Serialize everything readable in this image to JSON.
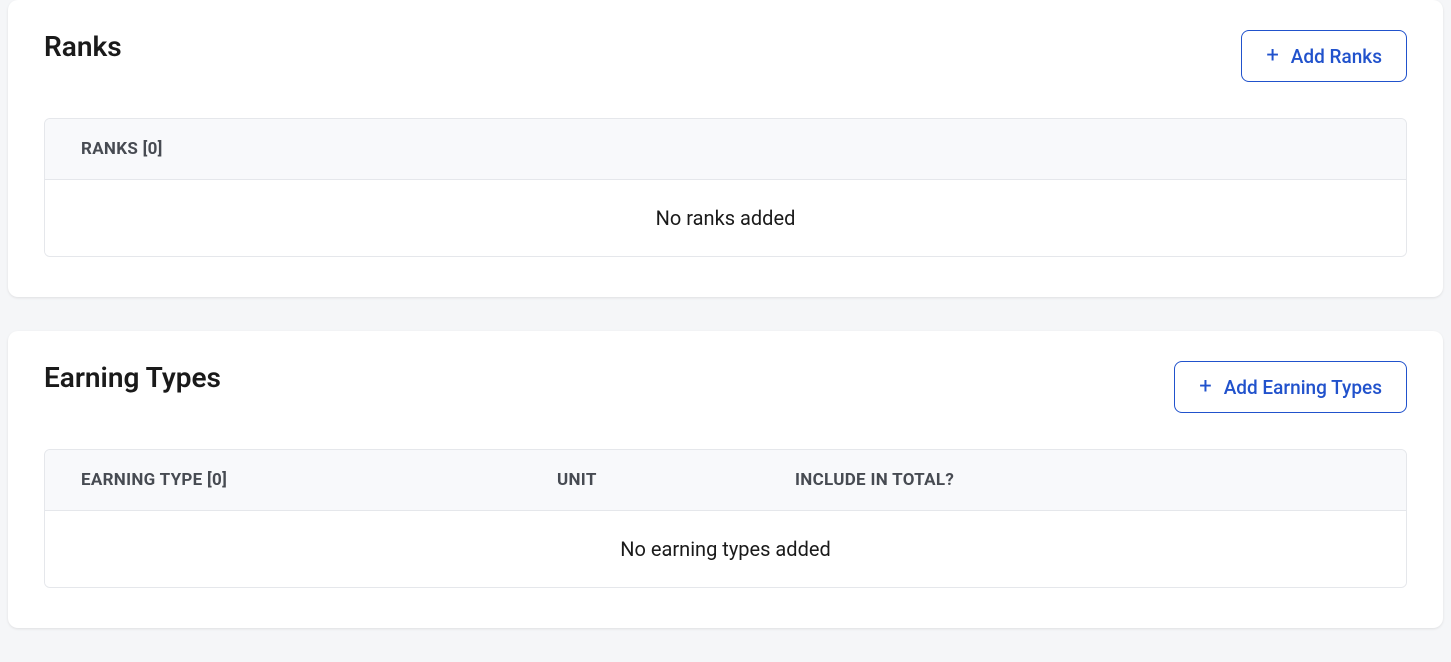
{
  "colors": {
    "page_background": "#f5f6f8",
    "card_background": "#ffffff",
    "border": "#e5e7eb",
    "table_header_background": "#f8f9fb",
    "button_border": "#2152cc",
    "button_text": "#2152cc",
    "title_text": "#1a1a1a",
    "header_text": "#474b52",
    "body_text": "#1a1a1a"
  },
  "ranks_section": {
    "title": "Ranks",
    "add_button_label": "Add Ranks",
    "table": {
      "columns": [
        {
          "key": "name",
          "label": "RANKS [0]"
        }
      ],
      "rows": [],
      "count": 0,
      "empty_message": "No ranks added"
    }
  },
  "earning_types_section": {
    "title": "Earning Types",
    "add_button_label": "Add Earning Types",
    "table": {
      "columns": [
        {
          "key": "earning_type",
          "label": "EARNING TYPE [0]"
        },
        {
          "key": "unit",
          "label": "UNIT"
        },
        {
          "key": "include_in_total",
          "label": "INCLUDE IN TOTAL?"
        }
      ],
      "rows": [],
      "count": 0,
      "empty_message": "No earning types added"
    }
  }
}
